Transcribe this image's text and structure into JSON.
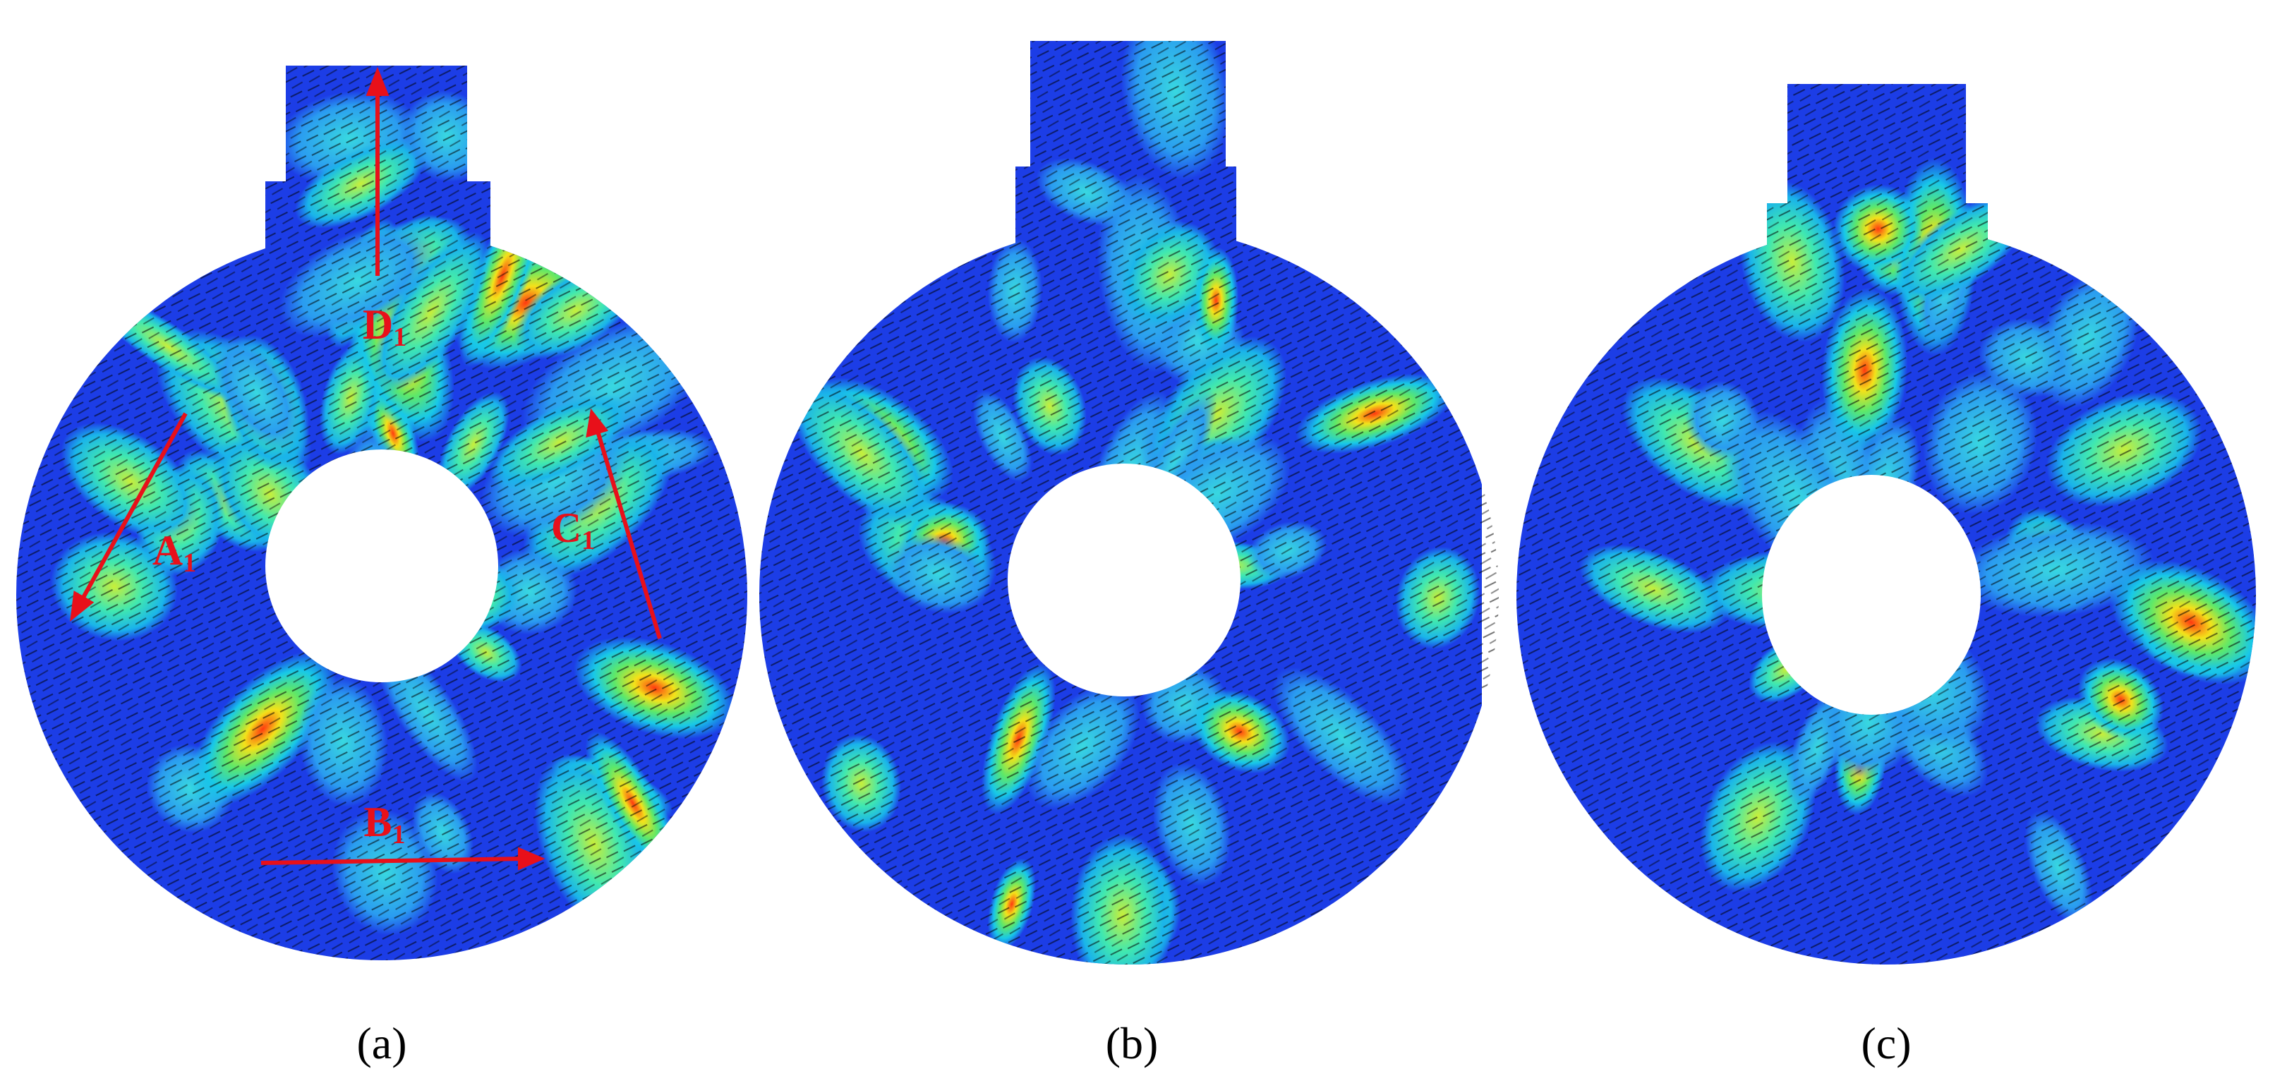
{
  "panels": [
    {
      "caption": "(a)",
      "annotations": [
        {
          "letter": "D",
          "sub": "1"
        },
        {
          "letter": "A",
          "sub": "1"
        },
        {
          "letter": "C",
          "sub": "1"
        },
        {
          "letter": "B",
          "sub": "1"
        }
      ]
    },
    {
      "caption": "(b)"
    },
    {
      "caption": "(c)"
    }
  ]
}
